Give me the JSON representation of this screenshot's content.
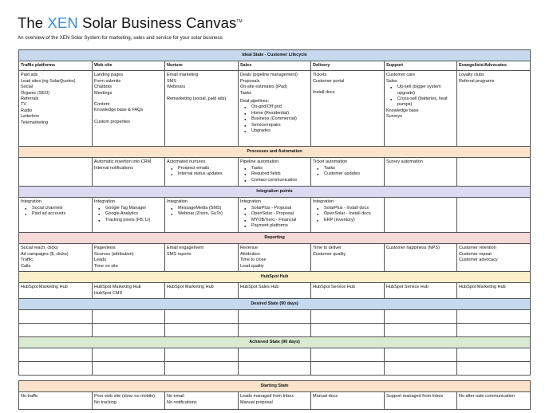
{
  "header": {
    "title_prefix": "The",
    "title_brand": "XEN",
    "title_suffix": "Solar Business Canvas",
    "title_mark": "TM",
    "subtitle": "An overview of the XEN Solar System for marketing, sales and service for your solar business"
  },
  "colors": {
    "brand": "#3a8fd4",
    "band_blue": "#c6d9ef",
    "band_orange": "#fbe3cc",
    "band_purple": "#dcdaf0",
    "band_pink": "#f5d8d8",
    "band_yellow": "#fbf0c9",
    "band_green": "#d9ead1"
  },
  "sections": {
    "ideal": "Ideal State - Customer Lifecycle",
    "processes": "Processes and Automation",
    "integration": "Integration points",
    "reporting": "Reporting",
    "hubspot": "HubSpot Hub",
    "desired": "Desired State (90 days)",
    "achieved": "Achieved State (90 days)",
    "starting": "Starting State"
  },
  "columns": [
    "Traffic platforms",
    "Web site",
    "Nurture",
    "Sales",
    "Delivery",
    "Support",
    "Evangelists/Advocates"
  ],
  "ideal": {
    "traffic": [
      "Paid ads",
      "Lead sites (eg SolarQuotes)",
      "Social",
      "Organic (SEO)",
      "Referrals",
      "TV",
      "Radio",
      "Letterbox",
      "Telemarketing"
    ],
    "website": {
      "lines_a": [
        "Landing pages",
        "Form submits",
        "Chatbots",
        "Meetings"
      ],
      "lines_b": [
        "Content",
        "Knowledge base & FAQs"
      ],
      "lines_c": [
        "Custom properties"
      ]
    },
    "nurture": {
      "lines_a": [
        "Email marketing",
        "SMS",
        "Webinars"
      ],
      "lines_b": [
        "Remarketing (social, paid ads)"
      ]
    },
    "sales": {
      "lines_a": [
        "Deals (pipeline management)",
        "Proposals",
        "On-site estimates (iPad)",
        "Tasks"
      ],
      "pipelines_label": "Deal pipelines:",
      "pipelines": [
        "On-grid/Off grid",
        "Home (Residential)",
        "Business (Commercial)",
        "Service/repairs",
        "Upgrades"
      ]
    },
    "delivery": {
      "lines_a": [
        "Tickets",
        "Customer portal"
      ],
      "lines_b": [
        "Install docs"
      ]
    },
    "support": {
      "lines_a": [
        "Customer care",
        "Sales"
      ],
      "bullets": [
        "Up-sell (bigger system upgrade)",
        "Cross-sell (batteries, heat pumps)"
      ],
      "lines_b": [
        "Knowledge base",
        "Surveys"
      ]
    },
    "evangelists": [
      "Loyalty clubs",
      "Referral programs"
    ]
  },
  "processes": {
    "website": [
      "Automatic insertion into CRM",
      "Internal notifications"
    ],
    "nurture": {
      "label": "Automated nurtures",
      "bullets": [
        "Prospect emails",
        "Internal status updates"
      ]
    },
    "sales": {
      "label": "Pipeline automation",
      "bullets": [
        "Tasks",
        "Required fields",
        "Contact communication"
      ]
    },
    "delivery": {
      "label": "Ticket automation",
      "bullets": [
        "Tasks",
        "Customer updates"
      ]
    },
    "support": "Survey automation"
  },
  "integration": {
    "traffic": {
      "label": "Integration",
      "bullets": [
        "Social channels",
        "Paid ad accounts"
      ]
    },
    "website": {
      "label": "Integration",
      "bullets": [
        "Google Tag Manager",
        "Google Analytics",
        "Tracking pixels (FB, LI)"
      ]
    },
    "nurture": {
      "label": "Integration",
      "bullets": [
        "MessageMedia (SMS)",
        "Webinar (Zoom, GoTo)"
      ]
    },
    "sales": {
      "label": "Integration",
      "bullets": [
        "SolarPlus - Proposal",
        "OpenSolar - Proposal",
        "MYOB/Xero - Financial",
        "Payment platforms"
      ]
    },
    "delivery": {
      "label": "Integration",
      "bullets": [
        "SolarPlus - Install docs",
        "OpenSolar - Install docs",
        "ERP (inventory)"
      ]
    }
  },
  "reporting": {
    "traffic": [
      "Social reach, clicks",
      "Ad campaigns ($, clicks)",
      "Traffic",
      "Calls"
    ],
    "website": [
      "Pageviews",
      "Sources (attribution)",
      "Leads",
      "Time on site"
    ],
    "nurture": [
      "Email engagement",
      "SMS reports"
    ],
    "sales": [
      "Revenue",
      "Attribution",
      "Time to close",
      "Lead quality"
    ],
    "delivery": [
      "Time to deliver",
      "Customer quality"
    ],
    "support": [
      "Customer happiness (NPS)"
    ],
    "evangelists": [
      "Customer retention",
      "Customer repeat",
      "Customer advocacy"
    ]
  },
  "hubspot": {
    "traffic": [
      "HubSpot Marketing Hub"
    ],
    "website": [
      "HubSpot Marketing Hub",
      "HubSpot CMS"
    ],
    "nurture": [
      "HubSpot Marketing Hub"
    ],
    "sales": [
      "HubSpot Sales Hub"
    ],
    "delivery": [
      "HubSpot Service Hub"
    ],
    "support": [
      "HubSpot Service Hub"
    ],
    "evangelists": [
      "HubSpot Marketing Hub"
    ]
  },
  "starting": {
    "traffic": [
      "No traffic"
    ],
    "website": [
      "Poor web site (slow, no mobile)",
      "No tracking"
    ],
    "nurture": [
      "No email",
      "No notifications"
    ],
    "sales": [
      "Leads managed from Inbox",
      "Manual proposal"
    ],
    "delivery": [
      "Manual docs"
    ],
    "support": [
      "Support managed from Inbox"
    ],
    "evangelists": [
      "No after-sale communication"
    ]
  }
}
